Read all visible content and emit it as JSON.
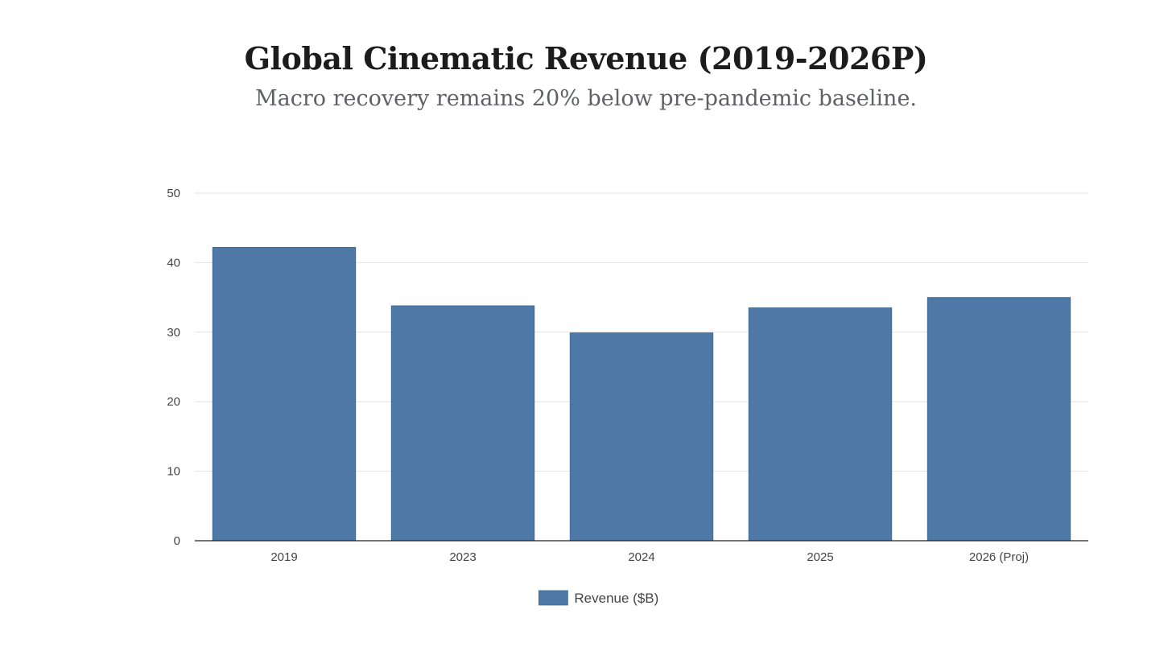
{
  "chart_data": {
    "type": "bar",
    "title": "Global Cinematic Revenue (2019-2026P)",
    "subtitle": "Macro recovery remains 20% below pre-pandemic baseline.",
    "categories": [
      "2019",
      "2023",
      "2024",
      "2025",
      "2026 (Proj)"
    ],
    "series": [
      {
        "name": "Revenue ($B)",
        "values": [
          42.2,
          33.8,
          29.9,
          33.5,
          35.0
        ],
        "color": "#4e79a7"
      }
    ],
    "xlabel": "",
    "ylabel": "",
    "ylim": [
      0,
      50
    ],
    "yticks": [
      0,
      10,
      20,
      30,
      40,
      50
    ],
    "grid": true,
    "legend": "bottom-center"
  }
}
